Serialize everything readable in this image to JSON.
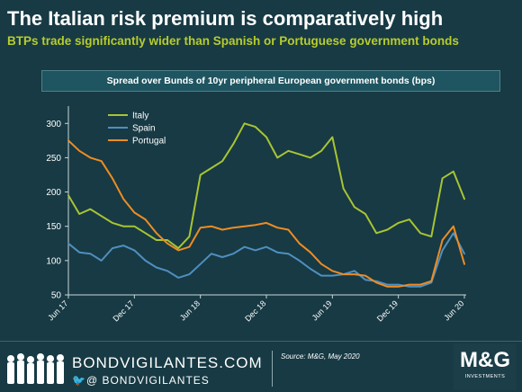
{
  "header": {
    "title": "The Italian risk premium is comparatively high",
    "subtitle": "BTPs trade significantly wider than Spanish or Portuguese government bonds"
  },
  "chart_data": {
    "type": "line",
    "title": "Spread over Bunds of 10yr peripheral European government bonds (bps)",
    "xlabel": "",
    "ylabel": "",
    "ylim": [
      50,
      320
    ],
    "yticks": [
      50,
      100,
      150,
      200,
      250,
      300
    ],
    "xticks": [
      "Jun 17",
      "Dec 17",
      "Jun 18",
      "Dec 18",
      "Jun 19",
      "Dec 19",
      "Jun 20"
    ],
    "grid": false,
    "legend_position": "top-left",
    "x": [
      "Jun 17",
      "Jul 17",
      "Aug 17",
      "Sep 17",
      "Oct 17",
      "Nov 17",
      "Dec 17",
      "Jan 18",
      "Feb 18",
      "Mar 18",
      "Apr 18",
      "May 18",
      "Jun 18",
      "Jul 18",
      "Aug 18",
      "Sep 18",
      "Oct 18",
      "Nov 18",
      "Dec 18",
      "Jan 19",
      "Feb 19",
      "Mar 19",
      "Apr 19",
      "May 19",
      "Jun 19",
      "Jul 19",
      "Aug 19",
      "Sep 19",
      "Oct 19",
      "Nov 19",
      "Dec 19",
      "Jan 20",
      "Feb 20",
      "Mar 20",
      "Apr 20",
      "May 20",
      "Jun 20"
    ],
    "series": [
      {
        "name": "Italy",
        "color": "#a8c432",
        "values": [
          195,
          168,
          175,
          165,
          155,
          150,
          150,
          140,
          130,
          130,
          118,
          135,
          225,
          235,
          245,
          270,
          300,
          295,
          280,
          250,
          260,
          255,
          250,
          260,
          280,
          205,
          178,
          168,
          140,
          145,
          155,
          160,
          140,
          135,
          220,
          230,
          190
        ]
      },
      {
        "name": "Spain",
        "color": "#4f8fc0",
        "values": [
          125,
          112,
          110,
          100,
          118,
          122,
          115,
          100,
          90,
          85,
          75,
          80,
          95,
          110,
          105,
          110,
          120,
          115,
          120,
          112,
          110,
          100,
          88,
          78,
          78,
          80,
          85,
          72,
          70,
          65,
          65,
          62,
          62,
          68,
          115,
          140,
          110
        ]
      },
      {
        "name": "Portugal",
        "color": "#ef8c22",
        "values": [
          275,
          260,
          250,
          245,
          220,
          190,
          170,
          160,
          140,
          125,
          115,
          120,
          148,
          150,
          145,
          148,
          150,
          152,
          155,
          148,
          145,
          125,
          112,
          95,
          85,
          80,
          80,
          78,
          68,
          62,
          62,
          65,
          65,
          70,
          130,
          150,
          95
        ]
      }
    ]
  },
  "footer": {
    "brand": "BONDVIGILANTES.COM",
    "handle": "🐦@ BONDVIGILANTES",
    "source": "Source: M&G, May 2020",
    "logo": "M&G",
    "logo_sub": "INVESTMENTS"
  }
}
